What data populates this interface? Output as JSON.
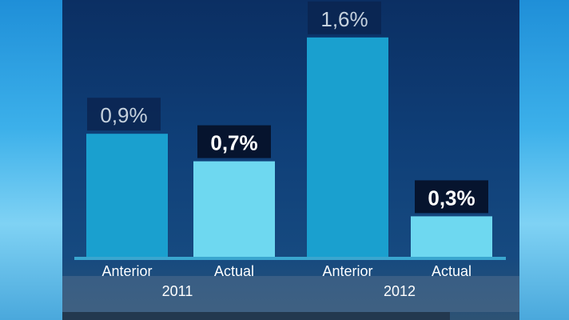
{
  "chart_data": {
    "type": "bar",
    "categories": [
      "Anterior",
      "Actual",
      "Anterior",
      "Actual"
    ],
    "groups": [
      "2011",
      "2012"
    ],
    "values": [
      0.9,
      0.7,
      1.6,
      0.3
    ],
    "value_labels": [
      "0,9%",
      "0,7%",
      "1,6%",
      "0,3%"
    ],
    "ylim": [
      0,
      1.7
    ],
    "grid": false,
    "colors": {
      "Anterior": "#1aa0cf",
      "Actual": "#6ed8f0",
      "anterior_label_box": "#0b2550",
      "actual_label_box": "#06142e",
      "axis": "#3aa6cf"
    }
  }
}
